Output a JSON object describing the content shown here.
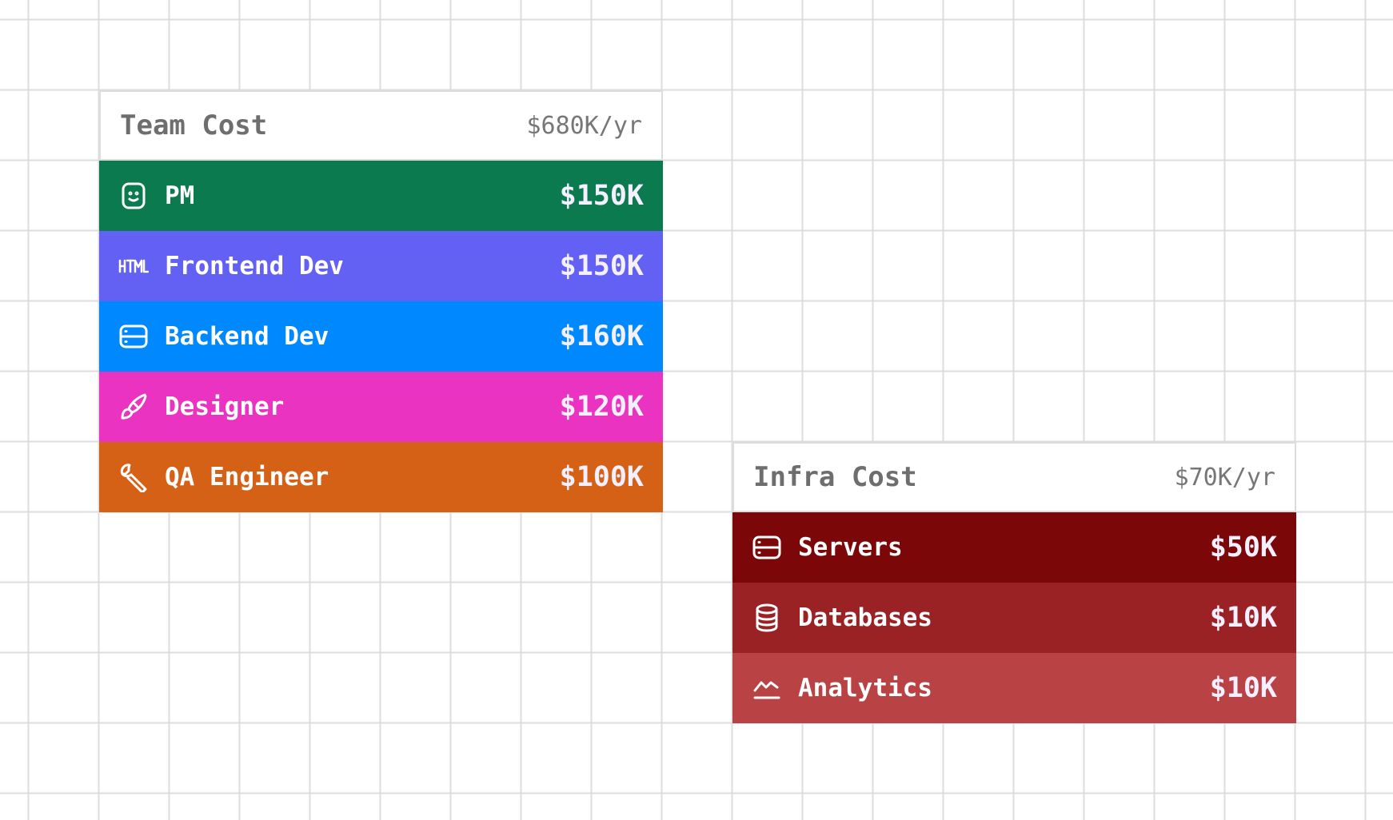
{
  "cards": [
    {
      "title": "Team Cost",
      "total": "$680K/yr",
      "rows": [
        {
          "label": "PM",
          "amount": "$150K",
          "color": "#0b7a4f"
        },
        {
          "label": "Frontend Dev",
          "amount": "$150K",
          "color": "#6361f4"
        },
        {
          "label": "Backend Dev",
          "amount": "$160K",
          "color": "#0088fe"
        },
        {
          "label": "Designer",
          "amount": "$120K",
          "color": "#ea34c1"
        },
        {
          "label": "QA Engineer",
          "amount": "$100K",
          "color": "#d56117"
        }
      ]
    },
    {
      "title": "Infra Cost",
      "total": "$70K/yr",
      "rows": [
        {
          "label": "Servers",
          "amount": "$50K",
          "color": "#7c0709"
        },
        {
          "label": "Databases",
          "amount": "$10K",
          "color": "#9a2225"
        },
        {
          "label": "Analytics",
          "amount": "$10K",
          "color": "#b94244"
        }
      ]
    }
  ]
}
